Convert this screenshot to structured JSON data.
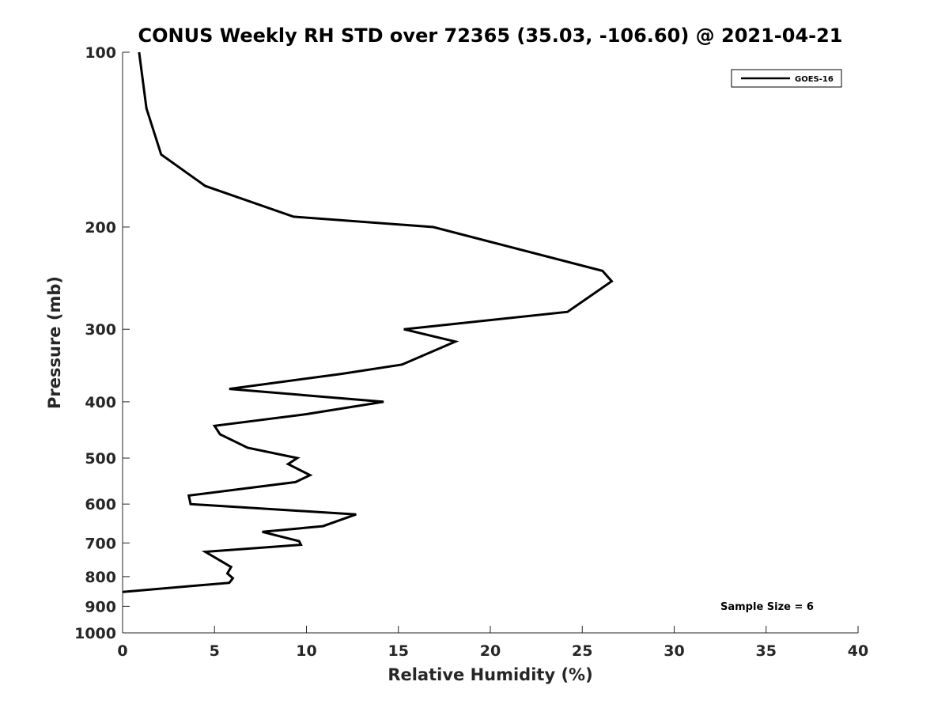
{
  "chart_data": {
    "type": "line",
    "title": "CONUS Weekly RH STD over 72365 (35.03, -106.60) @ 2021-04-21",
    "xlabel": "Relative Humidity (%)",
    "ylabel": "Pressure (mb)",
    "xlim": [
      0,
      40
    ],
    "ylim": [
      100,
      1000
    ],
    "y_scale": "log",
    "y_reversed": true,
    "x_ticks": [
      "0",
      "5",
      "10",
      "15",
      "20",
      "25",
      "30",
      "35",
      "40"
    ],
    "y_ticks": [
      "100",
      "200",
      "300",
      "400",
      "500",
      "600",
      "700",
      "800",
      "900",
      "1000"
    ],
    "grid": false,
    "legend_position": "top-right",
    "annotation": "Sample Size = 6",
    "series": [
      {
        "name": "GOES-16",
        "color": "#000000",
        "x": [
          0.9,
          1.3,
          2.1,
          4.5,
          9.3,
          16.9,
          26.1,
          26.6,
          24.2,
          15.3,
          18.1,
          15.2,
          11.9,
          5.8,
          14.2,
          10.0,
          5.0,
          5.3,
          6.8,
          9.5,
          9.0,
          10.2,
          9.4,
          3.6,
          3.7,
          12.7,
          10.9,
          7.6,
          9.6,
          9.7,
          4.5,
          5.9,
          5.7,
          6.0,
          5.8,
          0.0
        ],
        "y": [
          100,
          125,
          150,
          170,
          192,
          200,
          238,
          248,
          280,
          300,
          315,
          345,
          358,
          380,
          400,
          420,
          440,
          455,
          480,
          500,
          512,
          535,
          550,
          580,
          600,
          625,
          655,
          670,
          695,
          705,
          725,
          770,
          790,
          805,
          820,
          850
        ]
      }
    ]
  }
}
